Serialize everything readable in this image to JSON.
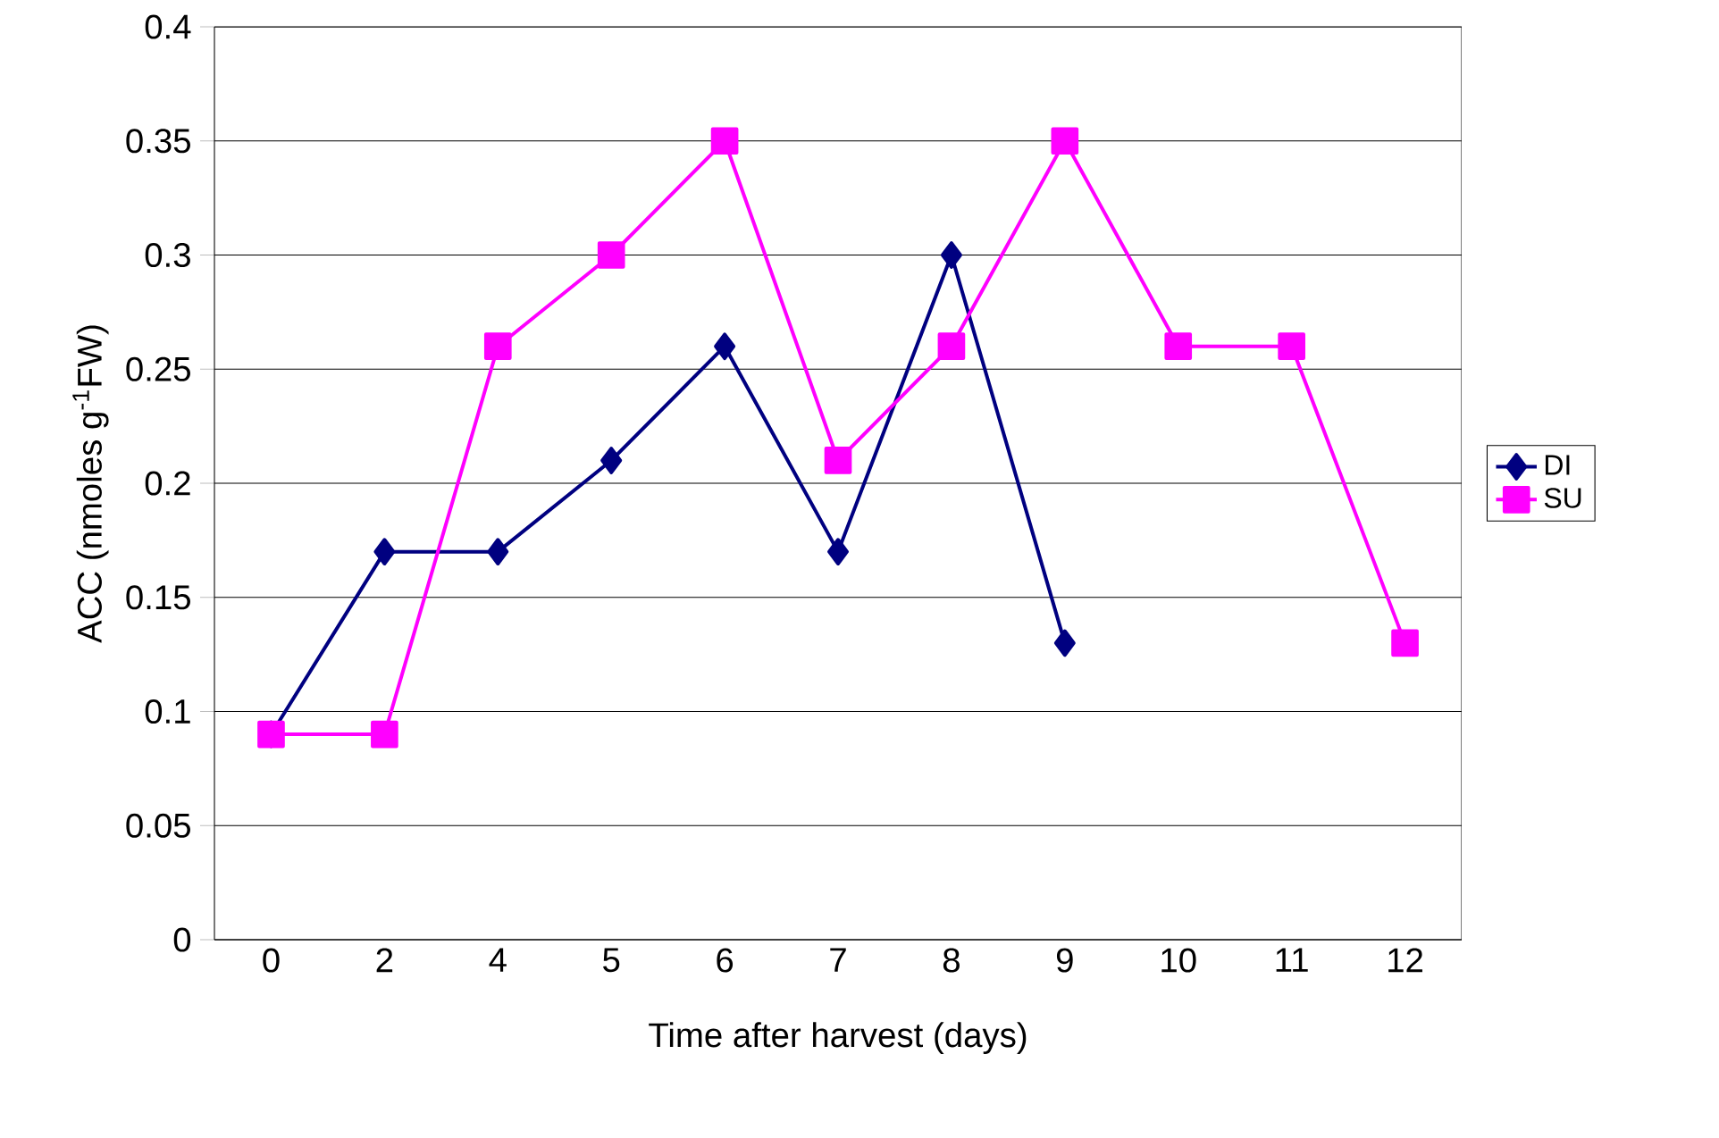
{
  "chart_data": {
    "type": "line",
    "xlabel": "Time after harvest (days)",
    "ylabel": "ACC (nmoles g$^{-1}$FW)",
    "categories": [
      "0",
      "2",
      "4",
      "5",
      "6",
      "7",
      "8",
      "9",
      "10",
      "11",
      "12"
    ],
    "series": [
      {
        "name": "DI",
        "color": "#000080",
        "marker": "diamond",
        "values": [
          0.09,
          0.17,
          0.17,
          0.21,
          0.26,
          0.17,
          0.3,
          0.13,
          null,
          null,
          null
        ]
      },
      {
        "name": "SU",
        "color": "#ff00ff",
        "marker": "square",
        "values": [
          0.09,
          0.09,
          0.26,
          0.3,
          0.35,
          0.21,
          0.26,
          0.35,
          0.26,
          0.26,
          0.13
        ]
      }
    ],
    "ylim": [
      0,
      0.4
    ],
    "yticks": [
      0,
      0.05,
      0.1,
      0.15,
      0.2,
      0.25,
      0.3,
      0.35,
      0.4
    ],
    "grid": "y",
    "legend": "right"
  }
}
